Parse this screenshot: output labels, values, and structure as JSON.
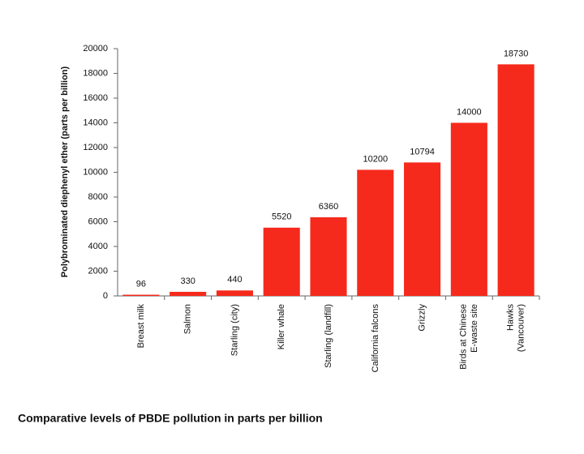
{
  "chart_data": {
    "type": "bar",
    "title": "Comparative levels of PBDE pollution in parts per billion",
    "y_label": "Polybrominated diephenyl ether (parts per billion)",
    "categories": [
      "Breast milk",
      "Salmon",
      "Starling (city)",
      "Killer whale",
      "Starling (landfill)",
      "California falcons",
      "Grizzly",
      "Birds at Chinese\nE-waste site",
      "Hawks\n(Vancouver)"
    ],
    "values": [
      96,
      330,
      440,
      5520,
      6360,
      10200,
      10794,
      14000,
      18730
    ],
    "color": "#f52a1c",
    "ylim": [
      0,
      20000
    ],
    "yticks": [
      0,
      2000,
      4000,
      6000,
      8000,
      10000,
      12000,
      14000,
      16000,
      18000,
      20000
    ],
    "grid": false
  }
}
